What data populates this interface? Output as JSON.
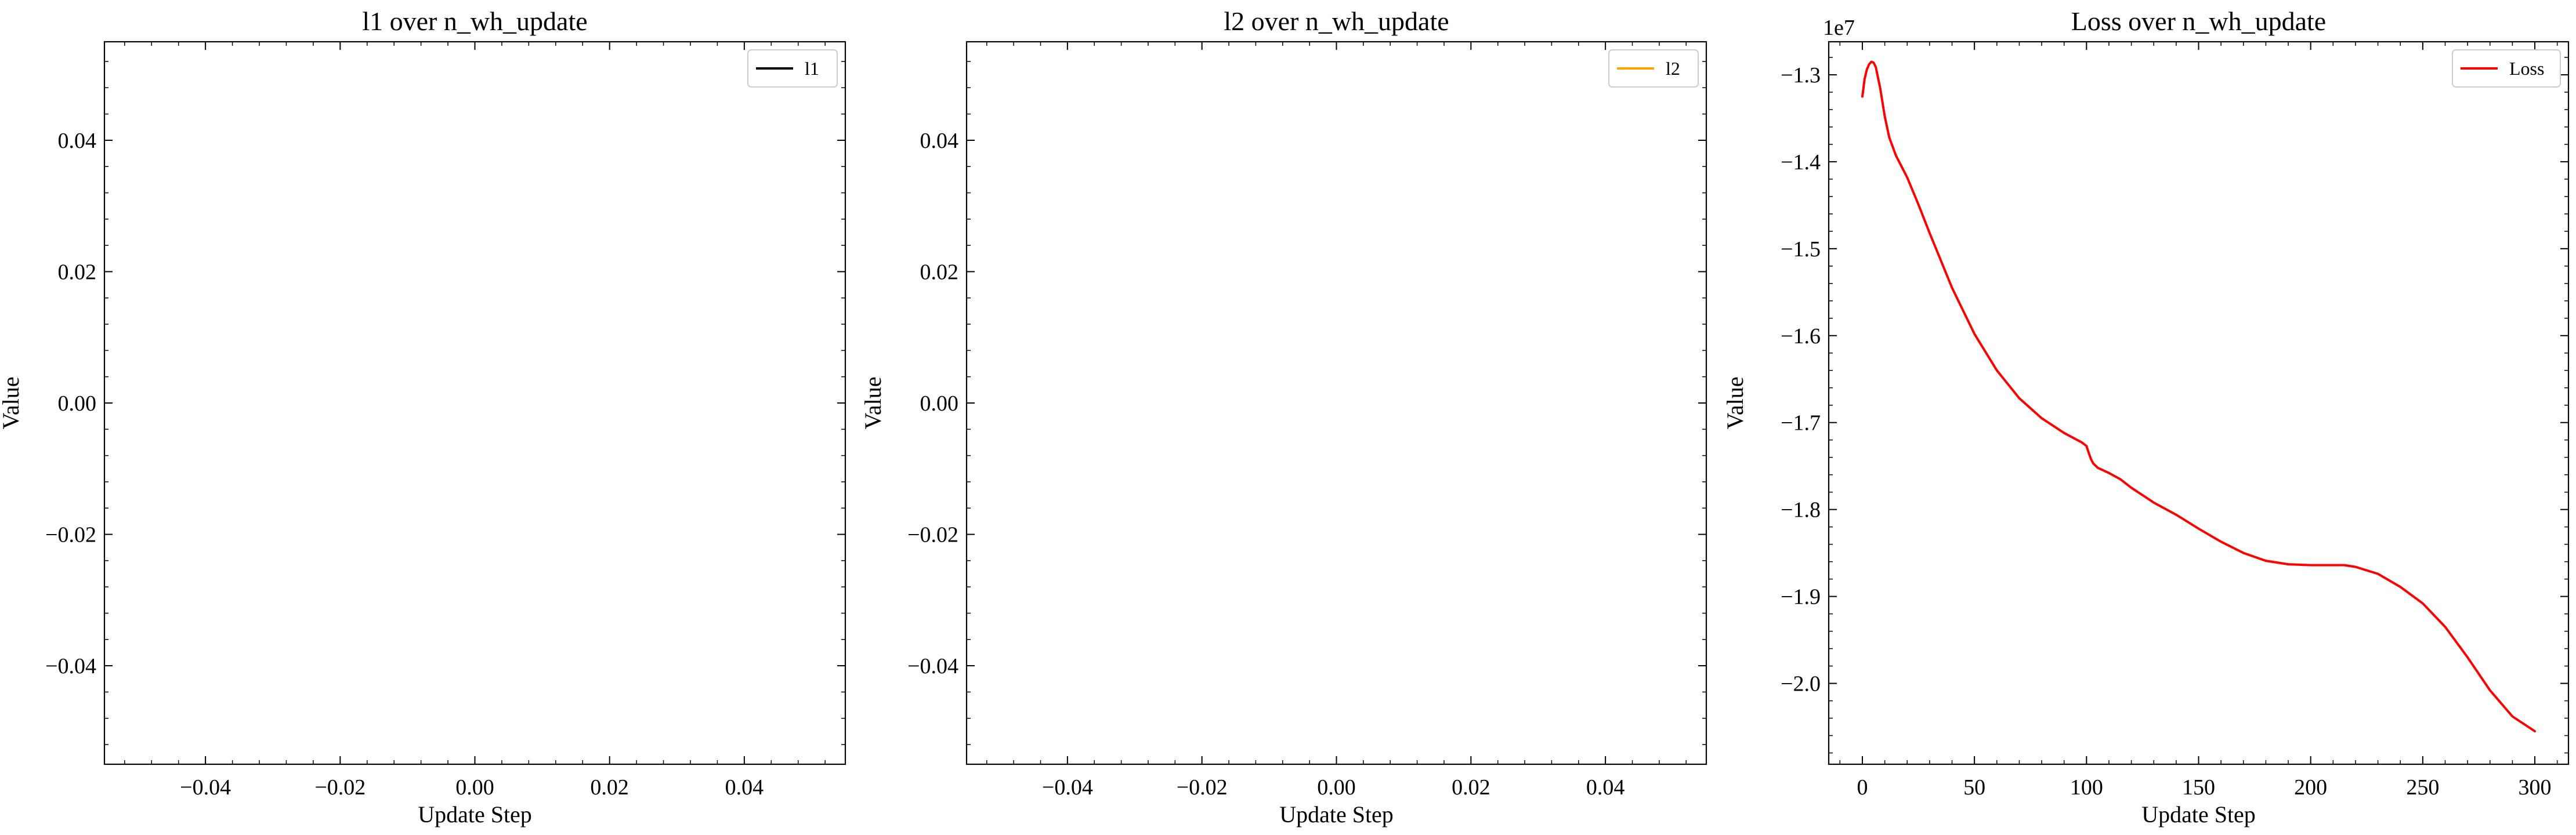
{
  "chart_data": [
    {
      "type": "line",
      "title": "l1 over n_wh_update",
      "xlabel": "Update Step",
      "ylabel": "Value",
      "xlim": [
        -0.055,
        0.055
      ],
      "ylim": [
        -0.055,
        0.055
      ],
      "xticks": [
        -0.04,
        -0.02,
        0.0,
        0.02,
        0.04
      ],
      "xtick_labels": [
        "−0.04",
        "−0.02",
        "0.00",
        "0.02",
        "0.04"
      ],
      "yticks": [
        -0.04,
        -0.02,
        0.0,
        0.02,
        0.04
      ],
      "ytick_labels": [
        "−0.04",
        "−0.02",
        "0.00",
        "0.02",
        "0.04"
      ],
      "offset_text": "",
      "legend_position": "top-right",
      "series": [
        {
          "name": "l1",
          "color": "#000000",
          "x": [],
          "y": []
        }
      ]
    },
    {
      "type": "line",
      "title": "l2 over n_wh_update",
      "xlabel": "Update Step",
      "ylabel": "Value",
      "xlim": [
        -0.055,
        0.055
      ],
      "ylim": [
        -0.055,
        0.055
      ],
      "xticks": [
        -0.04,
        -0.02,
        0.0,
        0.02,
        0.04
      ],
      "xtick_labels": [
        "−0.04",
        "−0.02",
        "0.00",
        "0.02",
        "0.04"
      ],
      "yticks": [
        -0.04,
        -0.02,
        0.0,
        0.02,
        0.04
      ],
      "ytick_labels": [
        "−0.04",
        "−0.02",
        "0.00",
        "0.02",
        "0.04"
      ],
      "offset_text": "",
      "legend_position": "top-right",
      "series": [
        {
          "name": "l2",
          "color": "#FFA500",
          "x": [],
          "y": []
        }
      ]
    },
    {
      "type": "line",
      "title": "Loss over n_wh_update",
      "xlabel": "Update Step",
      "ylabel": "Value",
      "xlim": [
        -15,
        315
      ],
      "ylim": [
        -2.093,
        -1.262
      ],
      "xticks": [
        0,
        50,
        100,
        150,
        200,
        250,
        300
      ],
      "xtick_labels": [
        "0",
        "50",
        "100",
        "150",
        "200",
        "250",
        "300"
      ],
      "yticks": [
        -2.0,
        -1.9,
        -1.8,
        -1.7,
        -1.6,
        -1.5,
        -1.4,
        -1.3
      ],
      "ytick_labels": [
        "−2.0",
        "−1.9",
        "−1.8",
        "−1.7",
        "−1.6",
        "−1.5",
        "−1.4",
        "−1.3"
      ],
      "offset_text": "1e7",
      "legend_position": "top-right",
      "series": [
        {
          "name": "Loss",
          "color": "#FF0000",
          "x": [
            0,
            1,
            2,
            3,
            4,
            5,
            6,
            8,
            10,
            12,
            15,
            20,
            25,
            30,
            40,
            50,
            60,
            70,
            80,
            90,
            98,
            100,
            101,
            102,
            103,
            105,
            110,
            115,
            120,
            130,
            140,
            150,
            160,
            170,
            180,
            190,
            200,
            210,
            215,
            220,
            230,
            240,
            250,
            260,
            270,
            280,
            290,
            300
          ],
          "y": [
            -1.325,
            -1.305,
            -1.294,
            -1.288,
            -1.285,
            -1.286,
            -1.291,
            -1.316,
            -1.348,
            -1.372,
            -1.393,
            -1.418,
            -1.449,
            -1.482,
            -1.545,
            -1.598,
            -1.64,
            -1.672,
            -1.695,
            -1.712,
            -1.723,
            -1.727,
            -1.735,
            -1.742,
            -1.747,
            -1.752,
            -1.758,
            -1.765,
            -1.775,
            -1.792,
            -1.806,
            -1.822,
            -1.837,
            -1.85,
            -1.859,
            -1.863,
            -1.864,
            -1.864,
            -1.864,
            -1.866,
            -1.874,
            -1.889,
            -1.908,
            -1.935,
            -1.97,
            -2.008,
            -2.038,
            -2.055
          ]
        }
      ]
    }
  ]
}
